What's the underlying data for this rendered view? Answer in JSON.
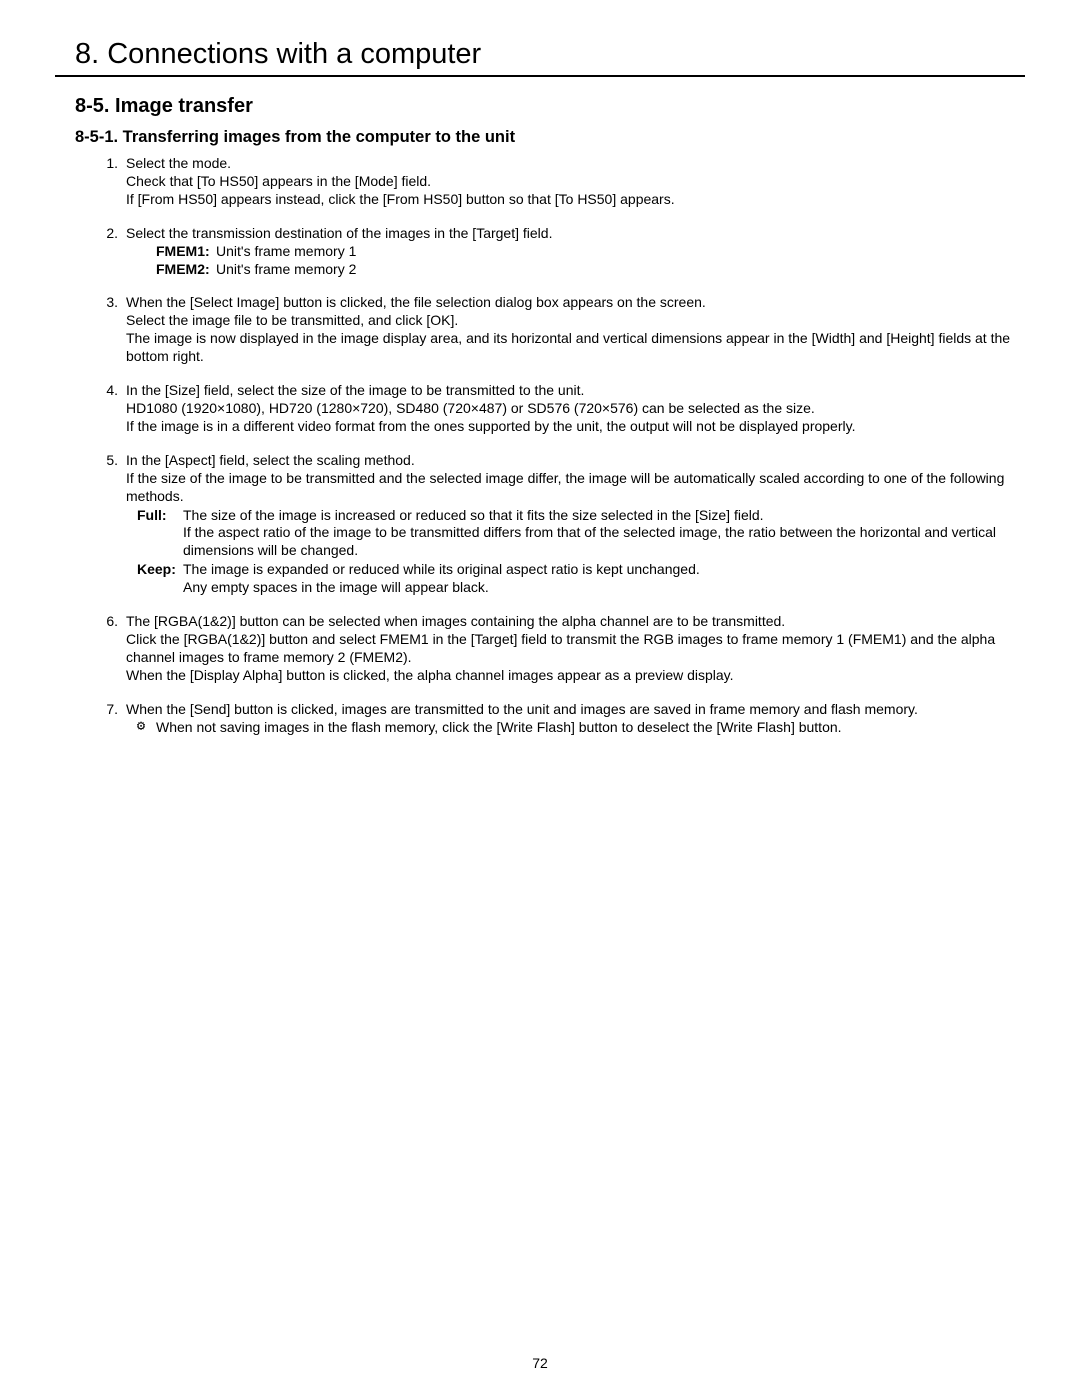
{
  "chapter_title": "8. Connections with a computer",
  "section_title": "8-5. Image transfer",
  "subsection_title": "8-5-1. Transferring images from the computer to the unit",
  "steps": [
    {
      "num": "1.",
      "lines": [
        "Select the mode.",
        "Check that [To HS50] appears in the [Mode] field.",
        "If [From HS50] appears instead, click the [From HS50] button so that [To HS50] appears."
      ]
    },
    {
      "num": "2.",
      "lines": [
        "Select the transmission destination of the images in the [Target] field."
      ],
      "kv": [
        {
          "key": "FMEM1:",
          "val": "Unit's frame memory 1"
        },
        {
          "key": "FMEM2:",
          "val": "Unit's frame memory 2"
        }
      ]
    },
    {
      "num": "3.",
      "lines": [
        "When the [Select Image] button is clicked, the file selection dialog box appears on the screen.",
        "Select the image file to be transmitted, and click [OK].",
        "The image is now displayed in the image display area, and its horizontal and vertical dimensions appear in the [Width] and [Height] fields at the bottom right."
      ]
    },
    {
      "num": "4.",
      "lines": [
        "In the [Size] field, select the size of the image to be transmitted to the unit.",
        "HD1080 (1920×1080), HD720 (1280×720), SD480 (720×487) or SD576 (720×576) can be selected as the size.",
        "If the image is in a different video format from the ones supported by the unit, the output will not be displayed properly."
      ]
    },
    {
      "num": "5.",
      "lines": [
        "In the [Aspect] field, select the scaling method.",
        "If the size of the image to be transmitted and the selected image differ, the image will be automatically scaled according to one of the following methods."
      ],
      "aspect": [
        {
          "key": "Full:",
          "val_lines": [
            "The size of the image is increased or reduced so that it fits the size selected in the [Size] field.",
            "If the aspect ratio of the image to be transmitted differs from that of the selected image, the ratio between the horizontal and vertical dimensions will be changed."
          ]
        },
        {
          "key": "Keep:",
          "val_lines": [
            "The image is expanded or reduced while its original aspect ratio is kept unchanged.",
            "Any empty spaces in the image will appear black."
          ]
        }
      ]
    },
    {
      "num": "6.",
      "lines": [
        "The [RGBA(1&2)] button can be selected when images containing the alpha channel are to be transmitted.",
        "Click the [RGBA(1&2)] button and select FMEM1 in the [Target] field to transmit the RGB images to frame memory 1 (FMEM1) and the alpha channel images to frame memory 2 (FMEM2).",
        "When the [Display Alpha] button is clicked, the alpha channel images appear as a preview display."
      ]
    },
    {
      "num": "7.",
      "lines": [
        "When the [Send] button is clicked, images are transmitted to the unit and images are saved in frame memory and flash memory."
      ],
      "note_glyph": "⚙",
      "note_text": "When not saving images in the flash memory, click the [Write Flash] button to deselect the [Write Flash] button."
    }
  ],
  "page_number": "72",
  "colors": {
    "text": "#000000",
    "background": "#ffffff",
    "rule": "#000000"
  },
  "typography": {
    "body_fontsize_pt": 11,
    "chapter_fontsize_pt": 22,
    "section_fontsize_pt": 15,
    "subsection_fontsize_pt": 12.5,
    "font_family": "Arial"
  }
}
